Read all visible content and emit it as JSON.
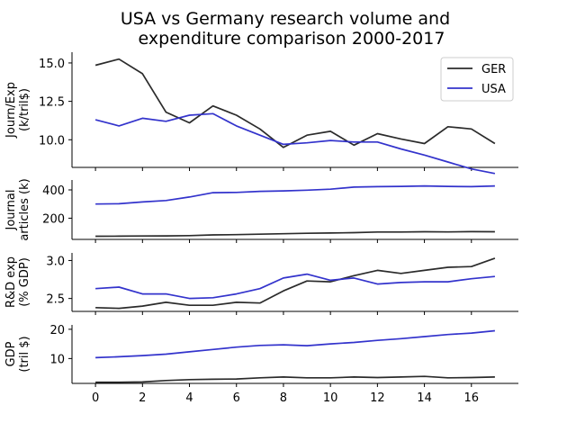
{
  "chart_data": {
    "type": "line",
    "title": "USA vs Germany research volume and\nexpenditure comparison 2000-2017",
    "x": [
      0,
      1,
      2,
      3,
      4,
      5,
      6,
      7,
      8,
      9,
      10,
      11,
      12,
      13,
      14,
      15,
      16,
      17
    ],
    "x_ticks": [
      0,
      2,
      4,
      6,
      8,
      10,
      12,
      14,
      16
    ],
    "legend": {
      "position": "upper-right",
      "entries": [
        "GER",
        "USA"
      ]
    },
    "colors": {
      "GER": "#2b2b2b",
      "USA": "#3333cc"
    },
    "panels": [
      {
        "ylabel": [
          "Journ/Exp",
          "(k/tril$)"
        ],
        "ylim": [
          8.2,
          15.7
        ],
        "yticks": [
          10.0,
          12.5,
          15.0
        ],
        "ytick_labels": [
          "10.0",
          "12.5",
          "15.0"
        ],
        "series": [
          {
            "name": "GER",
            "values": [
              14.85,
              15.25,
              14.3,
              11.8,
              11.1,
              12.2,
              11.6,
              10.7,
              9.5,
              10.3,
              10.55,
              9.65,
              10.4,
              10.05,
              9.75,
              10.85,
              10.7,
              9.75
            ]
          },
          {
            "name": "USA",
            "values": [
              11.3,
              10.9,
              11.4,
              11.2,
              11.6,
              11.7,
              10.9,
              10.3,
              9.7,
              9.8,
              9.95,
              9.85,
              9.85,
              9.4,
              9.0,
              8.55,
              8.1,
              7.8
            ]
          }
        ]
      },
      {
        "ylabel": [
          "Journal",
          "articles (k)"
        ],
        "ylim": [
          50,
          470
        ],
        "yticks": [
          200,
          400
        ],
        "ytick_labels": [
          "200",
          "400"
        ],
        "series": [
          {
            "name": "GER",
            "values": [
              72,
              73,
              74,
              75,
              77,
              82,
              84,
              87,
              90,
              93,
              95,
              98,
              102,
              102,
              104,
              103,
              105,
              104
            ]
          },
          {
            "name": "USA",
            "values": [
              300,
              302,
              315,
              325,
              350,
              380,
              382,
              390,
              393,
              398,
              405,
              420,
              423,
              425,
              428,
              425,
              423,
              428
            ]
          }
        ]
      },
      {
        "ylabel": [
          "R&D exp",
          "(% GDP)"
        ],
        "ylim": [
          2.33,
          3.1
        ],
        "yticks": [
          2.5,
          3.0
        ],
        "ytick_labels": [
          "2.5",
          "3.0"
        ],
        "series": [
          {
            "name": "GER",
            "values": [
              2.38,
              2.37,
              2.4,
              2.45,
              2.41,
              2.41,
              2.45,
              2.44,
              2.6,
              2.73,
              2.72,
              2.8,
              2.87,
              2.83,
              2.87,
              2.91,
              2.92,
              3.03
            ]
          },
          {
            "name": "USA",
            "values": [
              2.63,
              2.65,
              2.56,
              2.56,
              2.5,
              2.51,
              2.56,
              2.63,
              2.77,
              2.82,
              2.74,
              2.77,
              2.69,
              2.71,
              2.72,
              2.72,
              2.76,
              2.79
            ]
          }
        ]
      },
      {
        "ylabel": [
          "GDP",
          "(tril $)"
        ],
        "ylim": [
          1.5,
          21.5
        ],
        "yticks": [
          10,
          20
        ],
        "ytick_labels": [
          "10",
          "20"
        ],
        "series": [
          {
            "name": "GER",
            "values": [
              1.9,
              1.9,
              2.0,
              2.5,
              2.8,
              2.9,
              3.0,
              3.4,
              3.7,
              3.4,
              3.4,
              3.7,
              3.5,
              3.7,
              3.9,
              3.4,
              3.5,
              3.7
            ]
          },
          {
            "name": "USA",
            "values": [
              10.3,
              10.6,
              11.0,
              11.5,
              12.3,
              13.1,
              13.9,
              14.5,
              14.7,
              14.4,
              15.0,
              15.5,
              16.2,
              16.8,
              17.5,
              18.2,
              18.7,
              19.5
            ]
          }
        ]
      }
    ]
  }
}
